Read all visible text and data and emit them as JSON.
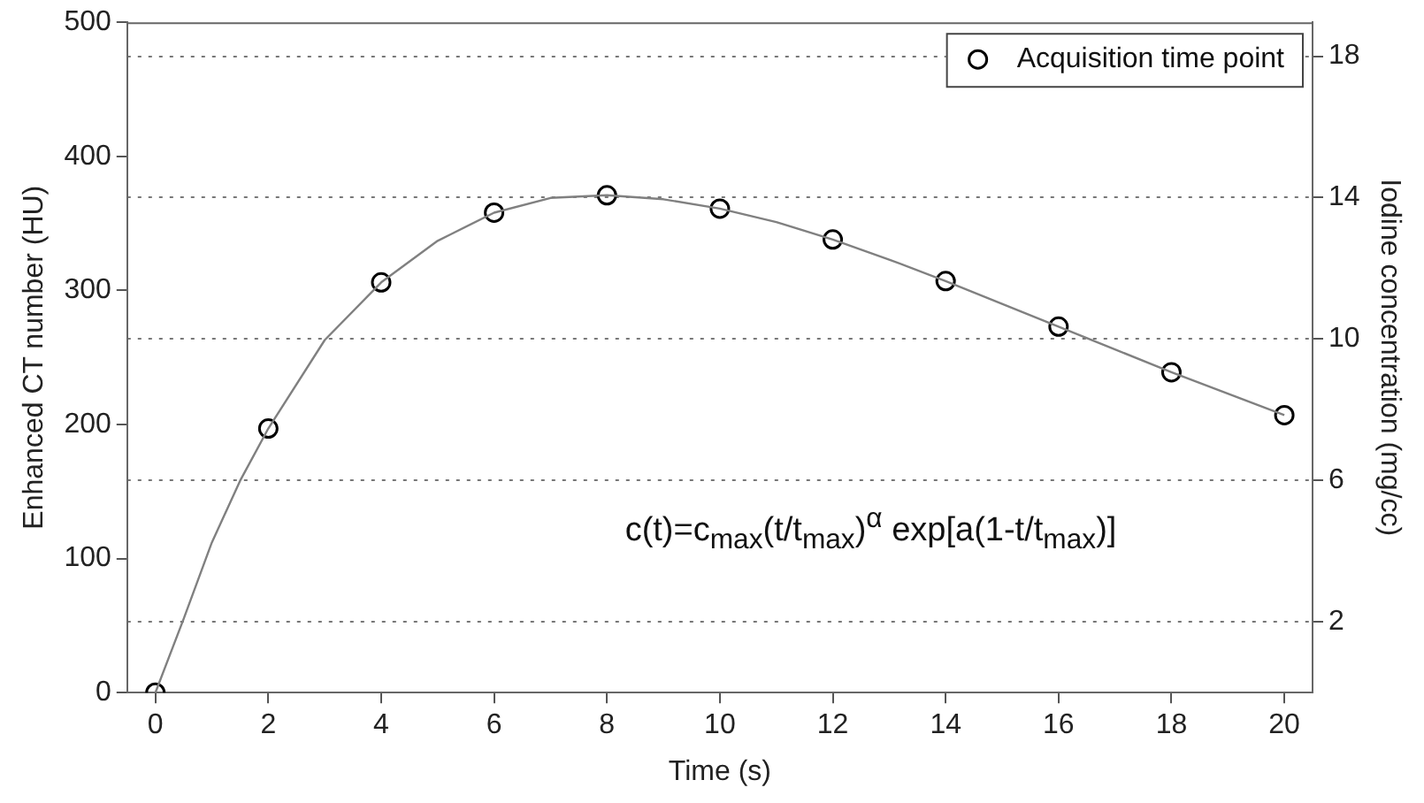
{
  "chart_data": {
    "type": "scatter",
    "xlabel": "Time (s)",
    "ylabel": "Enhanced CT number (HU)",
    "y2label": "Iodine concentration (mg/cc)",
    "annotations": [
      "c(t)=c$_{max}$(t/t$_{max}$)$^{α}$ exp[a(1-t/t$_{max}$)]"
    ],
    "xlim": [
      -0.5,
      20.5
    ],
    "xticks": [
      0,
      2,
      4,
      6,
      8,
      10,
      12,
      14,
      16,
      18,
      20
    ],
    "ylim": [
      0,
      500
    ],
    "yticks": [
      0,
      100,
      200,
      300,
      400,
      500
    ],
    "y2lim": [
      0,
      18.96
    ],
    "y2ticks": [
      2,
      6,
      10,
      14,
      18
    ],
    "grid": "y2",
    "legend": "top right",
    "series": [
      {
        "type": "line",
        "color": "#808080",
        "marker": "none",
        "line_style": "solid",
        "x": [
          0,
          0.5,
          1,
          1.5,
          2,
          3,
          4,
          5,
          6,
          7,
          8,
          9,
          10,
          11,
          12,
          13,
          14,
          15,
          16,
          17,
          18,
          19,
          20
        ],
        "values": [
          0,
          55,
          112,
          158,
          197,
          263,
          306,
          337,
          358,
          369,
          371,
          368,
          361,
          351,
          338,
          323,
          307,
          290,
          273,
          256,
          239,
          223,
          207
        ]
      },
      {
        "type": "scatter",
        "name": "Acquisition time point",
        "color": "#000000",
        "marker": "circle",
        "x": [
          0,
          2,
          4,
          6,
          8,
          10,
          12,
          14,
          16,
          18,
          20
        ],
        "values": [
          0,
          197,
          306,
          358,
          371,
          361,
          338,
          307,
          273,
          239,
          207
        ]
      }
    ]
  }
}
